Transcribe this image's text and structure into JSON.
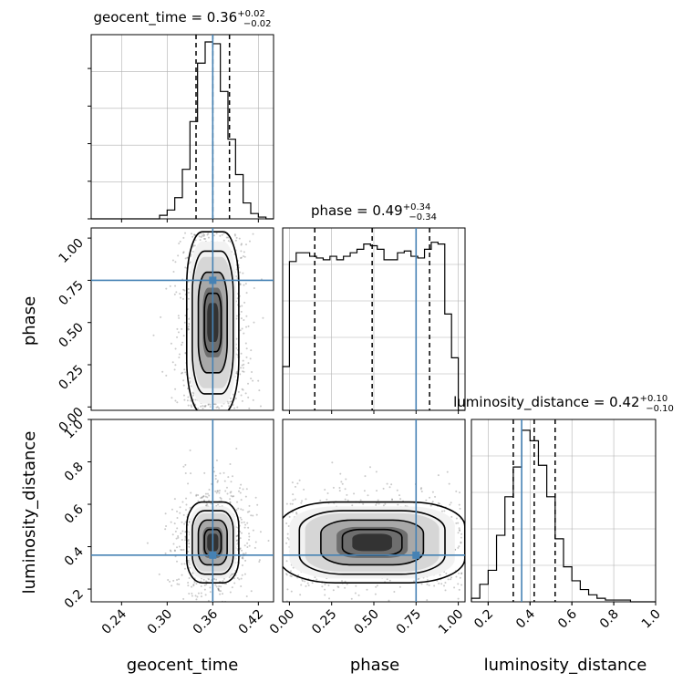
{
  "chart_data": [
    {
      "type": "histogram",
      "parameter": "geocent_time",
      "title": "geocent_time = 0.36",
      "title_sup": "+0.02",
      "title_sub": "−0.02",
      "xlim": [
        0.2,
        0.44
      ],
      "xticks": [
        0.24,
        0.3,
        0.36,
        0.42
      ],
      "xtick_labels": [
        "0.24",
        "0.30",
        "0.36",
        "0.42"
      ],
      "truth": 0.36,
      "quantiles": [
        0.338,
        0.36,
        0.382
      ],
      "bin_edges": [
        0.2,
        0.21,
        0.22,
        0.23,
        0.24,
        0.25,
        0.26,
        0.27,
        0.28,
        0.29,
        0.3,
        0.31,
        0.32,
        0.33,
        0.34,
        0.35,
        0.36,
        0.37,
        0.38,
        0.39,
        0.4,
        0.41,
        0.42,
        0.43,
        0.44
      ],
      "counts": [
        0,
        0,
        0,
        0,
        0,
        0,
        0,
        0,
        0,
        0.02,
        0.05,
        0.12,
        0.28,
        0.55,
        0.88,
        1.0,
        0.99,
        0.72,
        0.45,
        0.25,
        0.09,
        0.03,
        0.01,
        0
      ]
    },
    {
      "type": "histogram",
      "parameter": "phase",
      "title": "phase = 0.49",
      "title_sup": "+0.34",
      "title_sub": "−0.34",
      "xlim": [
        -0.04,
        1.04
      ],
      "xticks": [
        0.0,
        0.25,
        0.5,
        0.75,
        1.0
      ],
      "xtick_labels": [
        "0.00",
        "0.25",
        "0.50",
        "0.75",
        "1.00"
      ],
      "truth": 0.75,
      "quantiles": [
        0.15,
        0.49,
        0.83
      ],
      "bin_edges": [
        -0.04,
        0.0,
        0.04,
        0.08,
        0.12,
        0.16,
        0.2,
        0.24,
        0.28,
        0.32,
        0.36,
        0.4,
        0.44,
        0.48,
        0.52,
        0.56,
        0.6,
        0.64,
        0.68,
        0.72,
        0.76,
        0.8,
        0.84,
        0.88,
        0.92,
        0.96,
        1.0,
        1.04
      ],
      "counts": [
        0.25,
        0.85,
        0.9,
        0.9,
        0.88,
        0.87,
        0.86,
        0.88,
        0.86,
        0.88,
        0.9,
        0.92,
        0.95,
        0.94,
        0.92,
        0.86,
        0.86,
        0.9,
        0.91,
        0.88,
        0.87,
        0.92,
        0.96,
        0.95,
        0.55,
        0.3,
        0.0
      ]
    },
    {
      "type": "histogram",
      "parameter": "luminosity_distance",
      "title": "luminosity_distance = 0.42",
      "title_sup": "+0.10",
      "title_sub": "−0.10",
      "xlim": [
        0.12,
        1.0
      ],
      "xticks": [
        0.2,
        0.4,
        0.6,
        0.8,
        1.0
      ],
      "xtick_labels": [
        "0.2",
        "0.4",
        "0.6",
        "0.8",
        "1.0"
      ],
      "truth": 0.36,
      "quantiles": [
        0.32,
        0.42,
        0.52
      ],
      "bin_edges": [
        0.12,
        0.16,
        0.2,
        0.24,
        0.28,
        0.32,
        0.36,
        0.4,
        0.44,
        0.48,
        0.52,
        0.56,
        0.6,
        0.64,
        0.68,
        0.72,
        0.76,
        0.8,
        0.84,
        0.88,
        0.92,
        0.96,
        1.0
      ],
      "counts": [
        0.02,
        0.1,
        0.18,
        0.38,
        0.6,
        0.77,
        0.98,
        0.92,
        0.78,
        0.6,
        0.36,
        0.2,
        0.12,
        0.07,
        0.04,
        0.02,
        0.01,
        0.01,
        0.01,
        0.0,
        0.0,
        0.0
      ]
    },
    {
      "type": "scatter-density",
      "x_parameter": "geocent_time",
      "y_parameter": "phase",
      "xlim": [
        0.2,
        0.44
      ],
      "ylim": [
        -0.02,
        1.06
      ],
      "yticks": [
        0.0,
        0.25,
        0.5,
        0.75,
        1.0
      ],
      "ytick_labels": [
        "0.00",
        "0.25",
        "0.50",
        "0.75",
        "1.00"
      ],
      "ylabel": "phase",
      "truth": [
        0.36,
        0.75
      ],
      "center": [
        0.36,
        0.49
      ],
      "spread": [
        0.018,
        0.36
      ]
    },
    {
      "type": "scatter-density",
      "x_parameter": "geocent_time",
      "y_parameter": "luminosity_distance",
      "xlim": [
        0.2,
        0.44
      ],
      "ylim": [
        0.14,
        1.0
      ],
      "yticks": [
        0.2,
        0.4,
        0.6,
        0.8,
        1.0
      ],
      "ytick_labels": [
        "0.2",
        "0.4",
        "0.6",
        "0.8",
        "1.0"
      ],
      "ylabel": "luminosity_distance",
      "xlabel": "geocent_time",
      "truth": [
        0.36,
        0.36
      ],
      "center": [
        0.36,
        0.42
      ],
      "spread": [
        0.018,
        0.1
      ]
    },
    {
      "type": "scatter-density",
      "x_parameter": "phase",
      "y_parameter": "luminosity_distance",
      "xlim": [
        -0.04,
        1.04
      ],
      "ylim": [
        0.14,
        1.0
      ],
      "xlabel": "phase",
      "truth": [
        0.75,
        0.36
      ],
      "center": [
        0.49,
        0.42
      ],
      "spread": [
        0.34,
        0.1
      ]
    }
  ],
  "xlabels": {
    "geocent_time": "geocent_time",
    "phase": "phase",
    "luminosity_distance": "luminosity_distance"
  },
  "colors": {
    "truth": "#4682b4",
    "hist": "#000000",
    "grid": "#b0b0b0",
    "density": "#000000"
  },
  "grid": true
}
